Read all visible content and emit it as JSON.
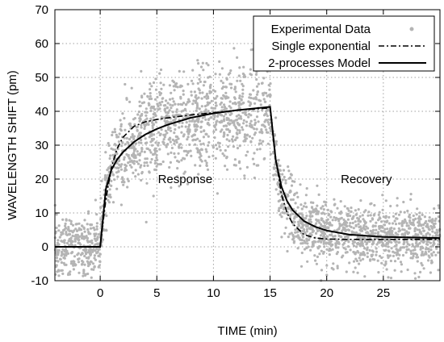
{
  "chart_data": {
    "type": "scatter",
    "xlabel": "TIME (min)",
    "ylabel": "WAVELENGTH SHIFT (pm)",
    "xlim": [
      -4,
      30
    ],
    "ylim": [
      -10,
      70
    ],
    "xticks": [
      0,
      5,
      10,
      15,
      20,
      25
    ],
    "yticks": [
      -10,
      0,
      10,
      20,
      30,
      40,
      50,
      60,
      70
    ],
    "grid": true,
    "legend_position": "top-right",
    "annotations": [
      {
        "text": "Response",
        "x": 7.5,
        "y": 20
      },
      {
        "text": "Recovery",
        "x": 23.5,
        "y": 20
      }
    ],
    "series": [
      {
        "name": "Experimental Data",
        "kind": "scatter",
        "color": "#b4b4b4",
        "description_points": "approx. 3000 noisy points following the model curves",
        "x_range": [
          -4,
          30
        ],
        "segments": [
          {
            "x": [
              -4,
              0
            ],
            "mean": 0,
            "noise_sd": 4.5
          },
          {
            "x": [
              0,
              15
            ],
            "mean_model": "rise",
            "noise_sd": 6
          },
          {
            "x": [
              15,
              30
            ],
            "mean_model": "decay",
            "noise_sd": 4.5
          }
        ]
      },
      {
        "name": "Single exponential",
        "kind": "line",
        "style": "dash-dot",
        "color": "#000000",
        "x": [
          -4,
          0,
          0.5,
          1,
          1.5,
          2,
          3,
          4,
          5,
          6,
          8,
          10,
          12,
          15,
          15.5,
          16,
          16.5,
          17,
          18,
          19,
          20,
          22,
          25,
          30
        ],
        "y": [
          0,
          0,
          14,
          23.5,
          29,
          32.3,
          35.6,
          36.9,
          37.6,
          38.1,
          38.9,
          39.6,
          40.3,
          41,
          26,
          15.5,
          10,
          6.8,
          3.6,
          2.6,
          2.3,
          2.2,
          2.2,
          2.2
        ]
      },
      {
        "name": "2-processes Model",
        "kind": "line",
        "style": "solid",
        "color": "#000000",
        "x": [
          -4,
          0,
          0.5,
          1,
          1.5,
          2,
          3,
          4,
          5,
          6,
          8,
          10,
          12,
          15,
          15.5,
          16,
          16.5,
          17,
          18,
          19,
          20,
          22,
          25,
          30
        ],
        "y": [
          0,
          0,
          17,
          22.8,
          25.8,
          27.9,
          31,
          33.2,
          34.8,
          36.1,
          38.1,
          39.4,
          40.3,
          41.3,
          25.5,
          17.8,
          13.5,
          10.8,
          7.6,
          5.9,
          4.8,
          3.6,
          2.9,
          2.6
        ]
      }
    ]
  }
}
